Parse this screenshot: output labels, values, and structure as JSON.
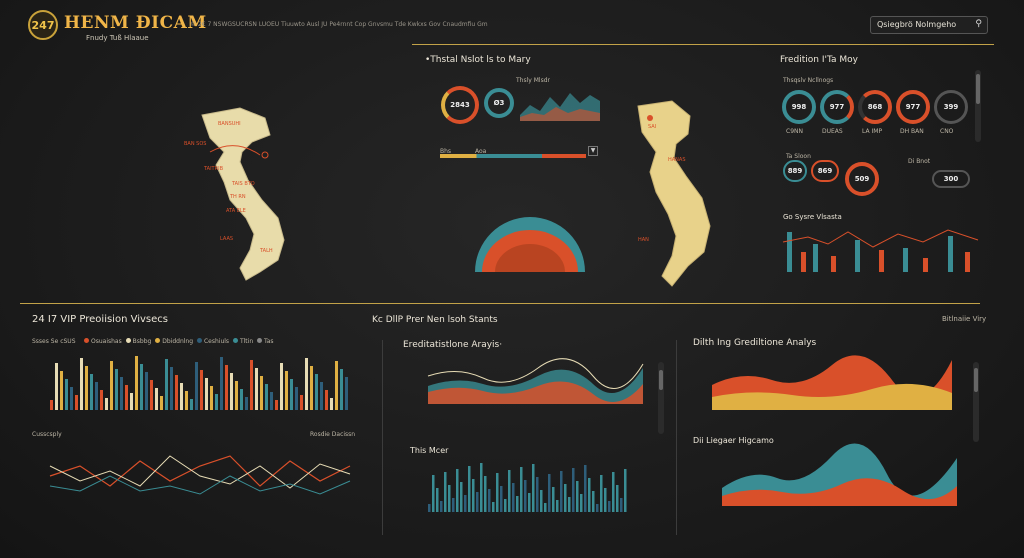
{
  "header": {
    "badge": "247",
    "brand": "HENM ĐICAM",
    "brand_sub": "Fnudy Tuß Hlaaue",
    "headline": "© 2€ 7 NSWGSUCRSN LUOEU  Tiuuwto Ausl JU Pe4rnnt Cop Gnvsmu  Tde Kwkxs Gov Cnaudmfiu Gm",
    "search_label": "Qsiegbrö Nolmgeho"
  },
  "top_center": {
    "title": "•Thstal Nslot ls to Mary",
    "subtitle": "Thsly Mlsdr",
    "ring1": "2843",
    "ring2": "Ø3",
    "bar_label": "Bhs",
    "bar_label2": "Aoa"
  },
  "top_right": {
    "title": "Fredition I'Ta Moy",
    "subtitle": "Thsqslv Ncllnogs",
    "rings": [
      "998",
      "977",
      "868",
      "977",
      "399"
    ],
    "ring_labels": [
      "C9NN",
      "DUEAS",
      "LA IMP",
      "DH BAN",
      "CNO"
    ],
    "row2_label": "Ta Sloon",
    "row2_left_label": "Di Bnot",
    "row2_rings": [
      "889",
      "869",
      "509",
      "300"
    ],
    "chart_title": "Go Sysre Vlsasta"
  },
  "bottom_left": {
    "title": "24 I7 VIP Preoiision Vivsecs",
    "legend_label": "Ssses Se cSUS",
    "legend": [
      "Osuaishas",
      "Bsbbg",
      "Dbiddnlng",
      "Ceshiuls",
      "Tltin",
      "Tas"
    ],
    "line_title": "Cusscsply",
    "line_legend": "Rosdie Dacissn",
    "colors": {
      "red": "#d9502a",
      "teal": "#3a8d94",
      "gold": "#e0b043",
      "cream": "#e7dcb5",
      "blue": "#2e5e7a"
    }
  },
  "bottom_mid": {
    "title": "Kc DllP Prer Nen lsoh Stants",
    "area_title": "Ereditatistlone Arayis·",
    "bar_title": "This Mcer"
  },
  "bottom_right": {
    "title": "Dilth Ing Grediltione Analys",
    "header_right": "Bitlnaiie Viry",
    "area2_title": "Dii Liegaer Higcamo"
  },
  "icons": [
    "search-icon",
    "chevron-down-icon",
    "search-icon",
    "circle-icon"
  ]
}
